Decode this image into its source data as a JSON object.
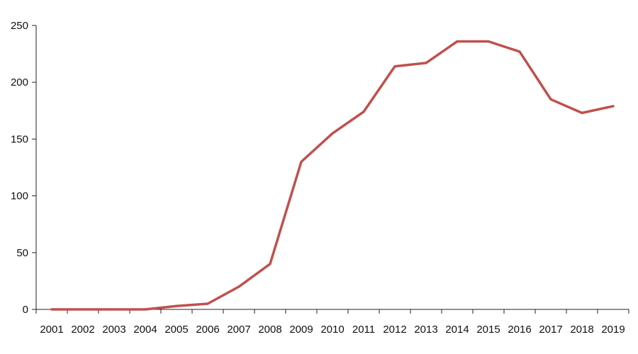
{
  "chart_data": {
    "type": "line",
    "title": "",
    "xlabel": "",
    "ylabel": "",
    "categories": [
      "2001",
      "2002",
      "2003",
      "2004",
      "2005",
      "2006",
      "2007",
      "2008",
      "2009",
      "2010",
      "2011",
      "2012",
      "2013",
      "2014",
      "2015",
      "2016",
      "2017",
      "2018",
      "2019"
    ],
    "series": [
      {
        "values": [
          0,
          0,
          0,
          0,
          3,
          5,
          20,
          40,
          130,
          155,
          174,
          214,
          217,
          236,
          236,
          227,
          185,
          173,
          179
        ],
        "color": "#c0504d"
      }
    ],
    "ylim": [
      0,
      250
    ],
    "yticks": [
      0,
      50,
      100,
      150,
      200,
      250
    ],
    "grid": false,
    "legend": "none"
  }
}
